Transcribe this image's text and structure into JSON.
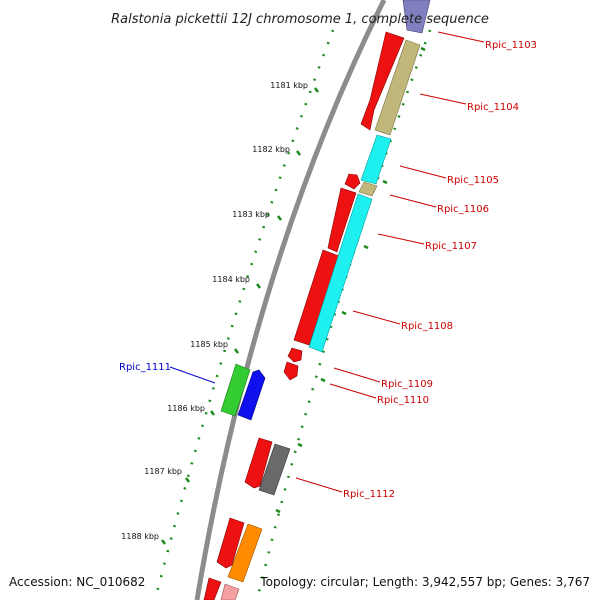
{
  "title": "Ralstonia pickettii 12J chromosome 1, complete sequence",
  "accession": "Accession: NC_010682",
  "summary": "Topology: circular; Length: 3,942,557 bp; Genes: 3,767",
  "scale_labels": [
    "1181 kbp",
    "1182 kbp",
    "1183 kbp",
    "1184 kbp",
    "1185 kbp",
    "1186 kbp",
    "1187 kbp",
    "1188 kbp"
  ],
  "gene_labels": [
    {
      "text": "Rpic_1103",
      "color": "#cc0000"
    },
    {
      "text": "Rpic_1104",
      "color": "#cc0000"
    },
    {
      "text": "Rpic_1105",
      "color": "#cc0000"
    },
    {
      "text": "Rpic_1106",
      "color": "#cc0000"
    },
    {
      "text": "Rpic_1107",
      "color": "#cc0000"
    },
    {
      "text": "Rpic_1108",
      "color": "#cc0000"
    },
    {
      "text": "Rpic_1109",
      "color": "#cc0000"
    },
    {
      "text": "Rpic_1110",
      "color": "#cc0000"
    },
    {
      "text": "Rpic_1111",
      "color": "#0000cc"
    },
    {
      "text": "Rpic_1112",
      "color": "#cc0000"
    }
  ],
  "colors": {
    "backbone": "#8c8c8c",
    "dots": "#1a8a1a",
    "cds_red": "#ee1111",
    "khaki": "#c2b77a",
    "cyan": "#1ef0f0",
    "blue": "#1010ee",
    "green": "#33cc33",
    "gray": "#6a6a6a",
    "orange": "#ff8c00",
    "pink": "#f4a0a0",
    "purple": "#8080c0"
  }
}
